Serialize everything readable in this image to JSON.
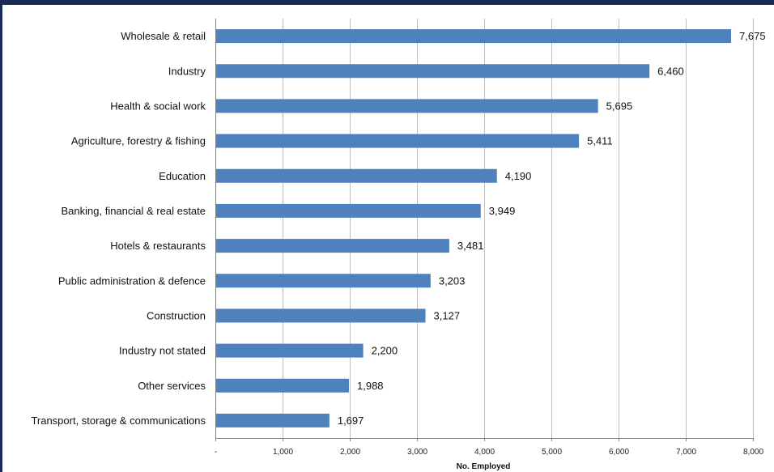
{
  "chart_data": {
    "type": "bar",
    "orientation": "horizontal",
    "categories": [
      "Wholesale & retail",
      "Industry",
      "Health & social work",
      "Agriculture, forestry & fishing",
      "Education",
      "Banking, financial & real estate",
      "Hotels & restaurants",
      "Public administration & defence",
      "Construction",
      "Industry not stated",
      "Other services",
      "Transport, storage & communications"
    ],
    "values": [
      7675,
      6460,
      5695,
      5411,
      4190,
      3949,
      3481,
      3203,
      3127,
      2200,
      1988,
      1697
    ],
    "value_labels": [
      "7,675",
      "6,460",
      "5,695",
      "5,411",
      "4,190",
      "3,949",
      "3,481",
      "3,203",
      "3,127",
      "2,200",
      "1,988",
      "1,697"
    ],
    "xticks": [
      0,
      1000,
      2000,
      3000,
      4000,
      5000,
      6000,
      7000,
      8000
    ],
    "xtick_labels": [
      "-",
      "1,000",
      "2,000",
      "3,000",
      "4,000",
      "5,000",
      "6,000",
      "7,000",
      "8,000"
    ],
    "xlim": [
      0,
      8000
    ],
    "xlabel": "No. Employed",
    "ylabel": "",
    "title": "",
    "grid": "vertical",
    "bar_color": "#4f81bd",
    "grid_color": "#bfbfbf"
  }
}
